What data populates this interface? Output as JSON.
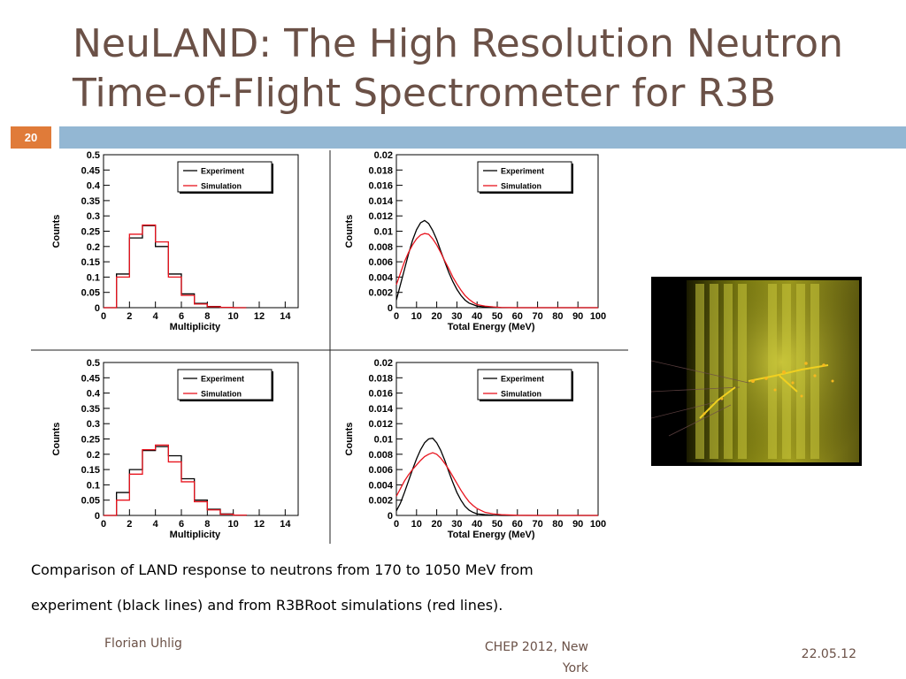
{
  "slide": {
    "title_lines": [
      "NeuLAND: The High Resolution Neutron",
      "Time-of-Flight Spectrometer for R3B"
    ],
    "page_number": "20",
    "caption_lines": [
      "Comparison of LAND response to neutrons from 170 to 1050 MeV from",
      "experiment (black lines) and from R3BRoot simulations (red lines)."
    ],
    "footer": {
      "author": "Florian Uhlig",
      "conference_line1": "CHEP 2012, New",
      "conference_line2": "York",
      "date": "22.05.12"
    },
    "colors": {
      "title": "#6b5147",
      "accent_bar": "#93b7d3",
      "page_badge": "#e07b39",
      "experiment_line": "#000000",
      "simulation_line": "#e8141e"
    }
  },
  "chart_data": [
    {
      "type": "histogram",
      "xlabel": "Multiplicity",
      "ylabel": "Counts",
      "xlim": [
        0,
        15
      ],
      "ylim": [
        0,
        0.5
      ],
      "xticks": [
        0,
        2,
        4,
        6,
        8,
        10,
        12,
        14
      ],
      "xtick_labels": [
        "0",
        "2",
        "4",
        "6",
        "8",
        "10",
        "12",
        "14"
      ],
      "yticks": [
        0,
        0.05,
        0.1,
        0.15,
        0.2,
        0.25,
        0.3,
        0.35,
        0.4,
        0.45,
        0.5
      ],
      "ytick_labels": [
        "0",
        "0.05",
        "0.1",
        "0.15",
        "0.2",
        "0.25",
        "0.3",
        "0.35",
        "0.4",
        "0.45",
        "0.5"
      ],
      "legend": [
        "Experiment",
        "Simulation"
      ],
      "bin_edges": [
        0,
        1,
        2,
        3,
        4,
        5,
        6,
        7,
        8,
        9,
        10,
        11
      ],
      "series": [
        {
          "name": "Experiment",
          "values": [
            0.0,
            0.11,
            0.228,
            0.268,
            0.2,
            0.11,
            0.045,
            0.014,
            0.004,
            0.001,
            0.0
          ]
        },
        {
          "name": "Simulation",
          "values": [
            0.0,
            0.1,
            0.24,
            0.27,
            0.215,
            0.1,
            0.04,
            0.012,
            0.003,
            0.001,
            0.0
          ]
        }
      ]
    },
    {
      "type": "histogram",
      "xlabel": "Total Energy (MeV)",
      "ylabel": "Counts",
      "xlim": [
        0,
        100
      ],
      "ylim": [
        0,
        0.02
      ],
      "xticks": [
        0,
        10,
        20,
        30,
        40,
        50,
        60,
        70,
        80,
        90,
        100
      ],
      "xtick_labels": [
        "0",
        "10",
        "20",
        "30",
        "40",
        "50",
        "60",
        "70",
        "80",
        "90",
        "100"
      ],
      "yticks": [
        0,
        0.002,
        0.004,
        0.006,
        0.008,
        0.01,
        0.012,
        0.014,
        0.016,
        0.018,
        0.02
      ],
      "ytick_labels": [
        "0",
        "0.002",
        "0.004",
        "0.006",
        "0.008",
        "0.01",
        "0.012",
        "0.014",
        "0.016",
        "0.018",
        "0.02"
      ],
      "legend": [
        "Experiment",
        "Simulation"
      ],
      "series": [
        {
          "name": "Experiment",
          "x": [
            0,
            2,
            4,
            6,
            8,
            10,
            12,
            14,
            16,
            18,
            20,
            22,
            24,
            26,
            28,
            30,
            32,
            34,
            36,
            38,
            40,
            44,
            48,
            52,
            60,
            70,
            80,
            100
          ],
          "values": [
            0.001,
            0.003,
            0.005,
            0.007,
            0.0088,
            0.0102,
            0.0111,
            0.0114,
            0.011,
            0.0101,
            0.0089,
            0.0074,
            0.006,
            0.0046,
            0.0034,
            0.0024,
            0.0016,
            0.001,
            0.0006,
            0.0004,
            0.0002,
            0.0001,
            3e-05,
            0.0,
            0.0,
            0.0,
            0.0,
            0.0
          ]
        },
        {
          "name": "Simulation",
          "x": [
            0,
            2,
            4,
            6,
            8,
            10,
            12,
            14,
            16,
            18,
            20,
            22,
            24,
            26,
            28,
            30,
            32,
            34,
            36,
            38,
            40,
            44,
            48,
            52,
            60,
            70,
            80,
            100
          ],
          "values": [
            0.003,
            0.0045,
            0.006,
            0.0072,
            0.0082,
            0.009,
            0.0095,
            0.0097,
            0.0096,
            0.009,
            0.0082,
            0.0072,
            0.0061,
            0.0051,
            0.004,
            0.0031,
            0.0023,
            0.0016,
            0.0011,
            0.0007,
            0.0004,
            0.0002,
            0.0001,
            3e-05,
            0.0,
            0.0,
            0.0,
            0.0
          ]
        }
      ]
    },
    {
      "type": "histogram",
      "xlabel": "Multiplicity",
      "ylabel": "Counts",
      "xlim": [
        0,
        15
      ],
      "ylim": [
        0,
        0.5
      ],
      "xticks": [
        0,
        2,
        4,
        6,
        8,
        10,
        12,
        14
      ],
      "xtick_labels": [
        "0",
        "2",
        "4",
        "6",
        "8",
        "10",
        "12",
        "14"
      ],
      "yticks": [
        0,
        0.05,
        0.1,
        0.15,
        0.2,
        0.25,
        0.3,
        0.35,
        0.4,
        0.45,
        0.5
      ],
      "ytick_labels": [
        "0",
        "0.05",
        "0.1",
        "0.15",
        "0.2",
        "0.25",
        "0.3",
        "0.35",
        "0.4",
        "0.45",
        "0.5"
      ],
      "legend": [
        "Experiment",
        "Simulation"
      ],
      "bin_edges": [
        0,
        1,
        2,
        3,
        4,
        5,
        6,
        7,
        8,
        9,
        10,
        11
      ],
      "series": [
        {
          "name": "Experiment",
          "values": [
            0.0,
            0.075,
            0.15,
            0.212,
            0.225,
            0.195,
            0.12,
            0.05,
            0.02,
            0.005,
            0.001
          ]
        },
        {
          "name": "Simulation",
          "values": [
            0.0,
            0.05,
            0.135,
            0.215,
            0.23,
            0.175,
            0.11,
            0.045,
            0.018,
            0.004,
            0.001
          ]
        }
      ]
    },
    {
      "type": "histogram",
      "xlabel": "Total Energy (MeV)",
      "ylabel": "Counts",
      "xlim": [
        0,
        100
      ],
      "ylim": [
        0,
        0.02
      ],
      "xticks": [
        0,
        10,
        20,
        30,
        40,
        50,
        60,
        70,
        80,
        90,
        100
      ],
      "xtick_labels": [
        "0",
        "10",
        "20",
        "30",
        "40",
        "50",
        "60",
        "70",
        "80",
        "90",
        "100"
      ],
      "yticks": [
        0,
        0.002,
        0.004,
        0.006,
        0.008,
        0.01,
        0.012,
        0.014,
        0.016,
        0.018,
        0.02
      ],
      "ytick_labels": [
        "0",
        "0.002",
        "0.004",
        "0.006",
        "0.008",
        "0.01",
        "0.012",
        "0.014",
        "0.016",
        "0.018",
        "0.02"
      ],
      "legend": [
        "Experiment",
        "Simulation"
      ],
      "series": [
        {
          "name": "Experiment",
          "x": [
            0,
            2,
            4,
            6,
            8,
            10,
            12,
            14,
            16,
            18,
            20,
            22,
            24,
            26,
            28,
            30,
            32,
            34,
            36,
            38,
            40,
            44,
            48,
            52,
            60,
            70,
            80,
            100
          ],
          "values": [
            0.0006,
            0.0016,
            0.003,
            0.0045,
            0.006,
            0.0074,
            0.0086,
            0.0095,
            0.01,
            0.0101,
            0.0095,
            0.0085,
            0.0072,
            0.0057,
            0.0043,
            0.003,
            0.002,
            0.0012,
            0.0007,
            0.0004,
            0.0002,
            0.0001,
            3e-05,
            0.0,
            0.0,
            0.0,
            0.0,
            0.0
          ]
        },
        {
          "name": "Simulation",
          "x": [
            0,
            2,
            4,
            6,
            8,
            10,
            12,
            14,
            16,
            18,
            20,
            22,
            24,
            26,
            28,
            30,
            32,
            34,
            36,
            38,
            40,
            44,
            48,
            52,
            60,
            70,
            80,
            100
          ],
          "values": [
            0.0025,
            0.0035,
            0.0045,
            0.0053,
            0.006,
            0.0066,
            0.0072,
            0.0077,
            0.008,
            0.0082,
            0.008,
            0.0075,
            0.0068,
            0.006,
            0.0051,
            0.0042,
            0.0033,
            0.0025,
            0.0018,
            0.0013,
            0.0009,
            0.0004,
            0.0002,
            0.0001,
            2e-05,
            0.0,
            0.0,
            0.0
          ]
        }
      ]
    }
  ]
}
